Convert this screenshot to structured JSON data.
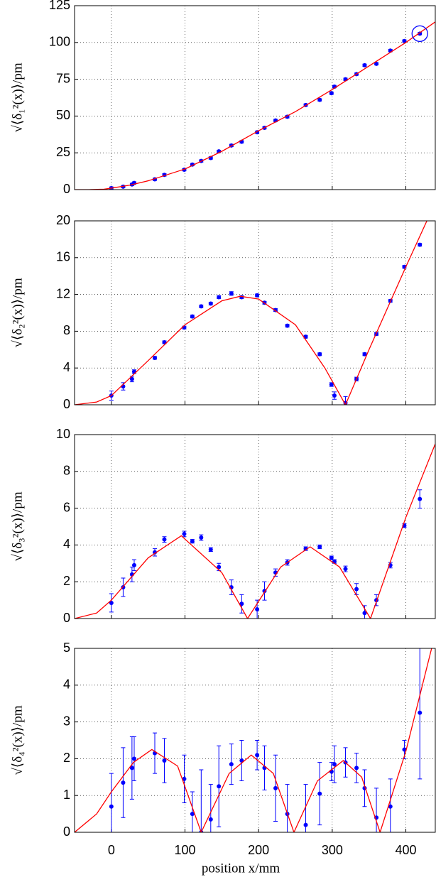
{
  "chart_data": [
    {
      "type": "scatter",
      "ylabel": "√⟨δ₁²(x)⟩/pm",
      "xlim": [
        -50,
        440
      ],
      "ylim": [
        0,
        125
      ],
      "yticks": [
        0,
        25,
        50,
        75,
        100,
        125
      ],
      "xticks": [
        0,
        100,
        200,
        300,
        400
      ],
      "grid": true,
      "highlight_index": 27,
      "series": [
        {
          "color": "#0000ff",
          "x": [
            0,
            16,
            28,
            31,
            59,
            72,
            99,
            110,
            122,
            135,
            146,
            163,
            177,
            198,
            208,
            223,
            239,
            264,
            283,
            299,
            303,
            318,
            333,
            344,
            360,
            379,
            398,
            419
          ],
          "values": [
            1,
            2,
            3.5,
            4.5,
            7,
            10,
            13.5,
            17,
            19.5,
            21.5,
            26,
            30,
            32.5,
            39,
            42,
            47,
            49.5,
            57.5,
            61,
            65.5,
            70,
            75,
            78.5,
            84.5,
            85.5,
            94.5,
            101,
            106
          ],
          "errors": [
            0.8,
            0.8,
            0.8,
            0.8,
            0.8,
            0.8,
            0.8,
            0.8,
            0.8,
            0.8,
            0.8,
            0.8,
            0.8,
            0.8,
            0.8,
            0.8,
            0.8,
            0.8,
            0.8,
            0.8,
            0.8,
            0.8,
            0.8,
            0.8,
            0.8,
            0.8,
            0.8,
            0.8
          ]
        },
        {
          "color": "#ff0000",
          "type": "line",
          "x": [
            -50,
            -30,
            -10,
            0,
            25,
            50,
            100,
            150,
            200,
            250,
            300,
            350,
            400,
            440
          ],
          "values": [
            0,
            0,
            0.3,
            1,
            3,
            6,
            14,
            26,
            40,
            53,
            68,
            84,
            100,
            114
          ]
        }
      ]
    },
    {
      "type": "scatter",
      "ylabel": "√⟨δ₂²(x)⟩/pm",
      "xlim": [
        -50,
        440
      ],
      "ylim": [
        0,
        20
      ],
      "yticks": [
        0,
        4,
        8,
        12,
        16,
        20
      ],
      "xticks": [
        0,
        100,
        200,
        300,
        400
      ],
      "grid": true,
      "series": [
        {
          "color": "#0000ff",
          "x": [
            0,
            16,
            28,
            31,
            59,
            72,
            99,
            110,
            122,
            135,
            146,
            163,
            177,
            198,
            208,
            223,
            239,
            264,
            283,
            299,
            303,
            318,
            333,
            344,
            360,
            379,
            398,
            419
          ],
          "values": [
            1,
            2,
            2.8,
            3.6,
            5.1,
            6.8,
            8.4,
            9.6,
            10.7,
            11,
            11.7,
            12.1,
            11.7,
            11.9,
            11.1,
            10.3,
            8.6,
            7.4,
            5.5,
            2.2,
            1,
            0.2,
            2.8,
            5.5,
            7.7,
            11.3,
            15,
            17.4
          ],
          "errors": [
            0.5,
            0.4,
            0.3,
            0.2,
            0.15,
            0.15,
            0.15,
            0.15,
            0.15,
            0.15,
            0.15,
            0.2,
            0.15,
            0.15,
            0.15,
            0.15,
            0.15,
            0.15,
            0.15,
            0.2,
            0.4,
            0.7,
            0.2,
            0.15,
            0.15,
            0.15,
            0.15,
            0.15
          ]
        },
        {
          "color": "#ff0000",
          "type": "line",
          "x": [
            -50,
            -20,
            0,
            50,
            100,
            150,
            175,
            200,
            250,
            290,
            318,
            350,
            400,
            440
          ],
          "values": [
            0,
            0.3,
            1,
            4.8,
            8.7,
            11.3,
            11.8,
            11.5,
            8.7,
            4,
            0,
            6,
            15,
            22
          ]
        }
      ]
    },
    {
      "type": "scatter",
      "ylabel": "√⟨δ₃²(x)⟩/pm",
      "xlim": [
        -50,
        440
      ],
      "ylim": [
        0,
        10
      ],
      "yticks": [
        0,
        2,
        4,
        6,
        8,
        10
      ],
      "xticks": [
        0,
        100,
        200,
        300,
        400
      ],
      "grid": true,
      "series": [
        {
          "color": "#0000ff",
          "x": [
            0,
            16,
            28,
            31,
            59,
            72,
            99,
            110,
            122,
            135,
            146,
            163,
            177,
            198,
            208,
            223,
            239,
            264,
            283,
            299,
            303,
            318,
            333,
            344,
            360,
            379,
            398,
            419
          ],
          "values": [
            0.85,
            1.7,
            2.4,
            2.9,
            3.6,
            4.3,
            4.6,
            4.2,
            4.4,
            3.75,
            2.8,
            1.7,
            0.8,
            0.5,
            1.5,
            2.5,
            3.05,
            3.8,
            3.9,
            3.3,
            3.1,
            2.7,
            1.6,
            0.3,
            1,
            2.9,
            5.05,
            6.5
          ],
          "errors": [
            0.5,
            0.5,
            0.4,
            0.3,
            0.2,
            0.15,
            0.15,
            0.1,
            0.15,
            0.1,
            0.2,
            0.4,
            0.5,
            0.5,
            0.5,
            0.2,
            0.15,
            0.1,
            0.1,
            0.1,
            0.1,
            0.15,
            0.3,
            0.4,
            0.3,
            0.15,
            0.1,
            0.5
          ]
        },
        {
          "color": "#ff0000",
          "type": "line",
          "x": [
            -50,
            -20,
            0,
            50,
            95,
            150,
            185,
            230,
            270,
            310,
            352,
            400,
            440
          ],
          "values": [
            0,
            0.3,
            1,
            3.3,
            4.5,
            2.5,
            0,
            2.8,
            3.9,
            2.8,
            0,
            5.5,
            9.5
          ]
        }
      ]
    },
    {
      "type": "scatter",
      "ylabel": "√⟨δ₄²(x)⟩/pm",
      "xlabel": "position x/mm",
      "xlim": [
        -50,
        440
      ],
      "ylim": [
        0,
        5
      ],
      "yticks": [
        0,
        1,
        2,
        3,
        4,
        5
      ],
      "xticks": [
        0,
        100,
        200,
        300,
        400
      ],
      "grid": true,
      "series": [
        {
          "color": "#0000ff",
          "x": [
            0,
            16,
            28,
            31,
            59,
            72,
            99,
            110,
            122,
            135,
            146,
            163,
            177,
            198,
            208,
            223,
            239,
            264,
            283,
            299,
            303,
            318,
            333,
            344,
            360,
            379,
            398,
            419
          ],
          "values": [
            0.7,
            1.35,
            1.75,
            2,
            2.15,
            1.95,
            1.45,
            0.5,
            0,
            0.35,
            1.25,
            1.85,
            1.95,
            2.1,
            1.75,
            1.2,
            0.5,
            0.2,
            1.05,
            1.65,
            1.85,
            1.9,
            1.75,
            1.2,
            0.4,
            0.7,
            2.25,
            3.25
          ],
          "errors": [
            0.9,
            0.95,
            0.85,
            0.6,
            0.55,
            0.6,
            0.65,
            0.6,
            1.7,
            0.95,
            1.1,
            0.55,
            0.55,
            0.4,
            0.6,
            0.9,
            0.8,
            1.1,
            0.85,
            0.25,
            0.5,
            0.4,
            0.4,
            0.5,
            0.8,
            0.75,
            0.25,
            1.8
          ]
        },
        {
          "color": "#ff0000",
          "type": "line",
          "x": [
            -50,
            -20,
            0,
            30,
            55,
            90,
            122,
            160,
            190,
            220,
            248,
            280,
            315,
            340,
            365,
            400,
            440
          ],
          "values": [
            0,
            0.5,
            1.1,
            1.9,
            2.25,
            1.8,
            0,
            1.6,
            2.1,
            1.6,
            0,
            1.4,
            1.95,
            1.5,
            0,
            2.2,
            5.4
          ]
        }
      ]
    }
  ]
}
